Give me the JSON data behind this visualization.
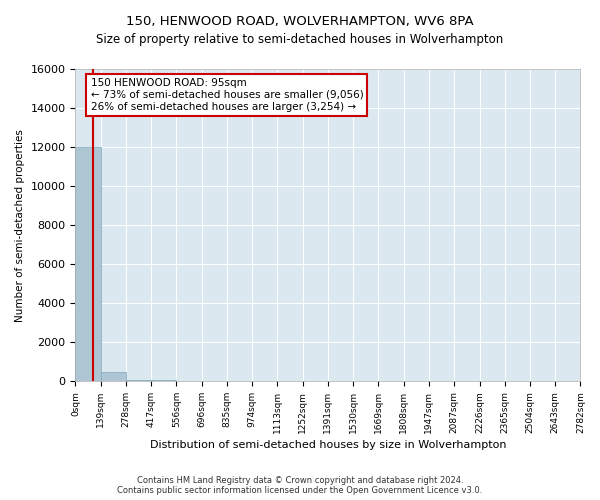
{
  "title": "150, HENWOOD ROAD, WOLVERHAMPTON, WV6 8PA",
  "subtitle": "Size of property relative to semi-detached houses in Wolverhampton",
  "xlabel": "Distribution of semi-detached houses by size in Wolverhampton",
  "ylabel": "Number of semi-detached properties",
  "footer_line1": "Contains HM Land Registry data © Crown copyright and database right 2024.",
  "footer_line2": "Contains public sector information licensed under the Open Government Licence v3.0.",
  "annotation_line1": "150 HENWOOD ROAD: 95sqm",
  "annotation_line2": "← 73% of semi-detached houses are smaller (9,056)",
  "annotation_line3": "26% of semi-detached houses are larger (3,254) →",
  "property_size": 95,
  "bar_color": "#aec6d4",
  "bar_edge_color": "#7fa8bf",
  "vline_color": "#cc0000",
  "annotation_box_color": "#cc0000",
  "background_color": "#dce8f0",
  "ylim": [
    0,
    16000
  ],
  "yticks": [
    0,
    2000,
    4000,
    6000,
    8000,
    10000,
    12000,
    14000,
    16000
  ],
  "bin_edges": [
    0,
    139,
    278,
    417,
    556,
    696,
    835,
    974,
    1113,
    1252,
    1391,
    1530,
    1669,
    1808,
    1947,
    2087,
    2226,
    2365,
    2504,
    2643,
    2782
  ],
  "bin_heights": [
    12000,
    450,
    80,
    40,
    20,
    10,
    8,
    5,
    4,
    3,
    3,
    2,
    2,
    1,
    1,
    1,
    1,
    0,
    0,
    0
  ],
  "tick_labels": [
    "0sqm",
    "139sqm",
    "278sqm",
    "417sqm",
    "556sqm",
    "696sqm",
    "835sqm",
    "974sqm",
    "1113sqm",
    "1252sqm",
    "1391sqm",
    "1530sqm",
    "1669sqm",
    "1808sqm",
    "1947sqm",
    "2087sqm",
    "2226sqm",
    "2365sqm",
    "2504sqm",
    "2643sqm",
    "2782sqm"
  ]
}
